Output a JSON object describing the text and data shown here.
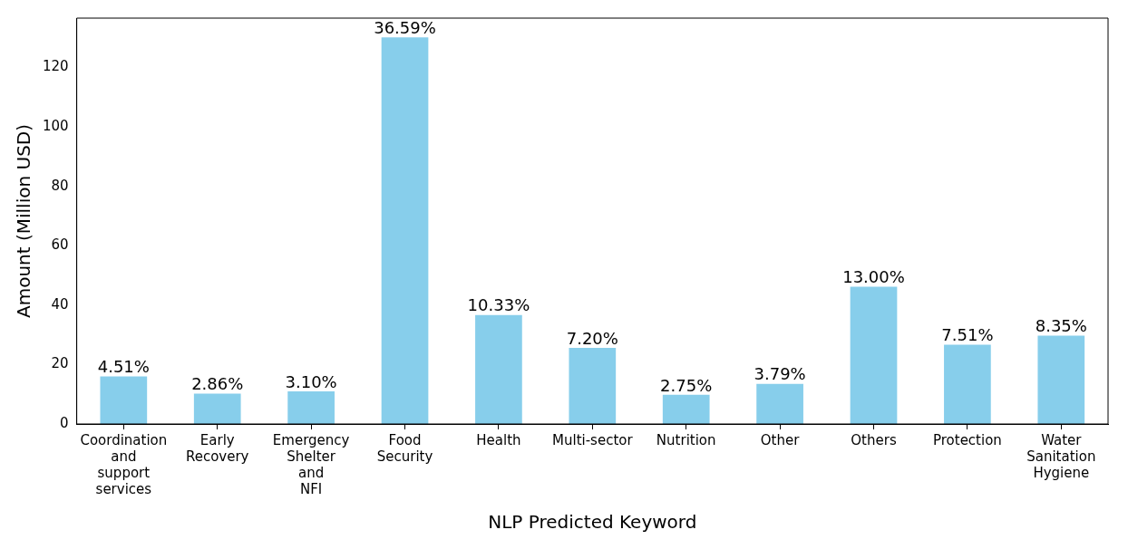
{
  "chart_data": {
    "type": "bar",
    "xlabel": "NLP Predicted Keyword",
    "ylabel": "Amount (Million USD)",
    "categories": [
      "Coordination and support services",
      "Early Recovery",
      "Emergency Shelter and NFI",
      "Food Security",
      "Health",
      "Multi-sector",
      "Nutrition",
      "Other",
      "Others",
      "Protection",
      "Water Sanitation Hygiene"
    ],
    "values": [
      16.0,
      10.2,
      11.0,
      130.1,
      36.7,
      25.6,
      9.8,
      13.5,
      46.2,
      26.7,
      29.7
    ],
    "annotations": [
      {
        "text": "4.51%",
        "x": "Coordination and support services",
        "y": 16.0
      },
      {
        "text": "2.86%",
        "x": "Early Recovery",
        "y": 10.2
      },
      {
        "text": "3.10%",
        "x": "Emergency Shelter and NFI",
        "y": 11.0
      },
      {
        "text": "36.59%",
        "x": "Food Security",
        "y": 130.1
      },
      {
        "text": "10.33%",
        "x": "Health",
        "y": 36.7
      },
      {
        "text": "7.20%",
        "x": "Multi-sector",
        "y": 25.6
      },
      {
        "text": "2.75%",
        "x": "Nutrition",
        "y": 9.8
      },
      {
        "text": "3.79%",
        "x": "Other",
        "y": 13.5
      },
      {
        "text": "13.00%",
        "x": "Others",
        "y": 46.2
      },
      {
        "text": "7.51%",
        "x": "Protection",
        "y": 26.7
      },
      {
        "text": "8.35%",
        "x": "Water Sanitation Hygiene",
        "y": 29.7
      }
    ],
    "color": "#87ceeb",
    "ylim": [
      0,
      136.6
    ],
    "yticks": [
      0,
      20,
      40,
      60,
      80,
      100,
      120
    ],
    "grid": false,
    "legend": false
  }
}
